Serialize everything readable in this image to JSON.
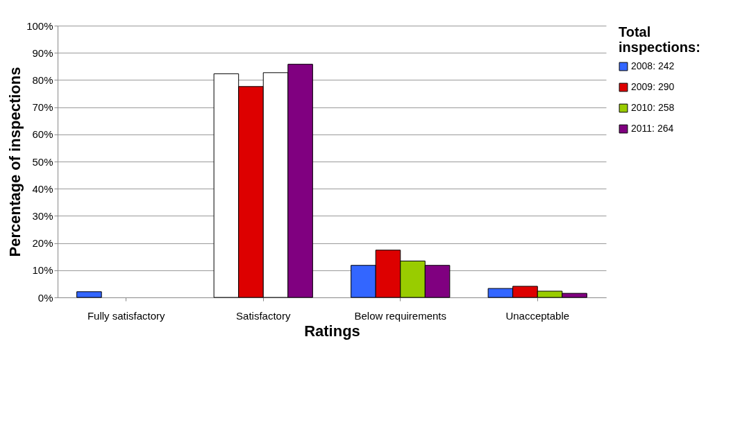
{
  "chart_data": {
    "type": "bar",
    "categories": [
      "Fully satisfactory",
      "Satisfactory",
      "Below requirements",
      "Unacceptable"
    ],
    "xlabel": "Ratings",
    "ylabel": "Percentage of inspections",
    "legend_title": "Total inspections:",
    "series": [
      {
        "name": "2008: 242",
        "color": "#3366ff",
        "colors": [
          "#3366ff",
          "#ffffff",
          "#3366ff",
          "#3366ff"
        ],
        "values": [
          2.1,
          82.3,
          11.8,
          3.3
        ]
      },
      {
        "name": "2009: 290",
        "color": "#dd0000",
        "values": [
          null,
          77.6,
          17.4,
          4.1
        ]
      },
      {
        "name": "2010: 258",
        "color": "#99cc00",
        "colors": [
          "#99cc00",
          "#ffffff",
          "#99cc00",
          "#99cc00"
        ],
        "values": [
          null,
          82.7,
          13.4,
          2.3
        ]
      },
      {
        "name": "2011: 264",
        "color": "#800080",
        "values": [
          null,
          85.8,
          11.8,
          1.5
        ]
      }
    ],
    "ylim": [
      0,
      100
    ],
    "yticks": [
      {
        "value": 0,
        "label": "0%"
      },
      {
        "value": 10,
        "label": "10%"
      },
      {
        "value": 20,
        "label": "20%"
      },
      {
        "value": 30,
        "label": "30%"
      },
      {
        "value": 40,
        "label": "40%"
      },
      {
        "value": 50,
        "label": "50%"
      },
      {
        "value": 60,
        "label": "60%"
      },
      {
        "value": 70,
        "label": "70%"
      },
      {
        "value": 80,
        "label": "80%"
      },
      {
        "value": 90,
        "label": "90%"
      },
      {
        "value": 100,
        "label": "100%"
      }
    ],
    "grid": "y",
    "legend": "right"
  }
}
